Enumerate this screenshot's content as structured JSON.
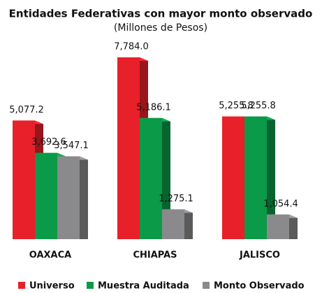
{
  "chart_data": {
    "type": "bar3d",
    "title": "Entidades Federativas con mayor monto observado",
    "subtitle": "(Millones de Pesos)",
    "categories": [
      "OAXACA",
      "CHIAPAS",
      "JALISCO"
    ],
    "series": [
      {
        "name": "Universo",
        "color": "#e8202a",
        "values": [
          5077.2,
          7784.0,
          5255.8
        ],
        "value_labels": [
          "5,077.2",
          "7,784.0",
          "5,255.8"
        ]
      },
      {
        "name": "Muestra Auditada",
        "color": "#0a9a48",
        "values": [
          3692.6,
          5186.1,
          5255.8
        ],
        "value_labels": [
          "3,692.6",
          "5,186.1",
          "5,255.8"
        ]
      },
      {
        "name": "Monto Observado",
        "color": "#8a8a8c",
        "values": [
          3547.1,
          1275.1,
          1054.4
        ],
        "value_labels": [
          "3,547.1",
          "1,275.1",
          "1,054.4"
        ]
      }
    ],
    "legend": "bottom"
  }
}
